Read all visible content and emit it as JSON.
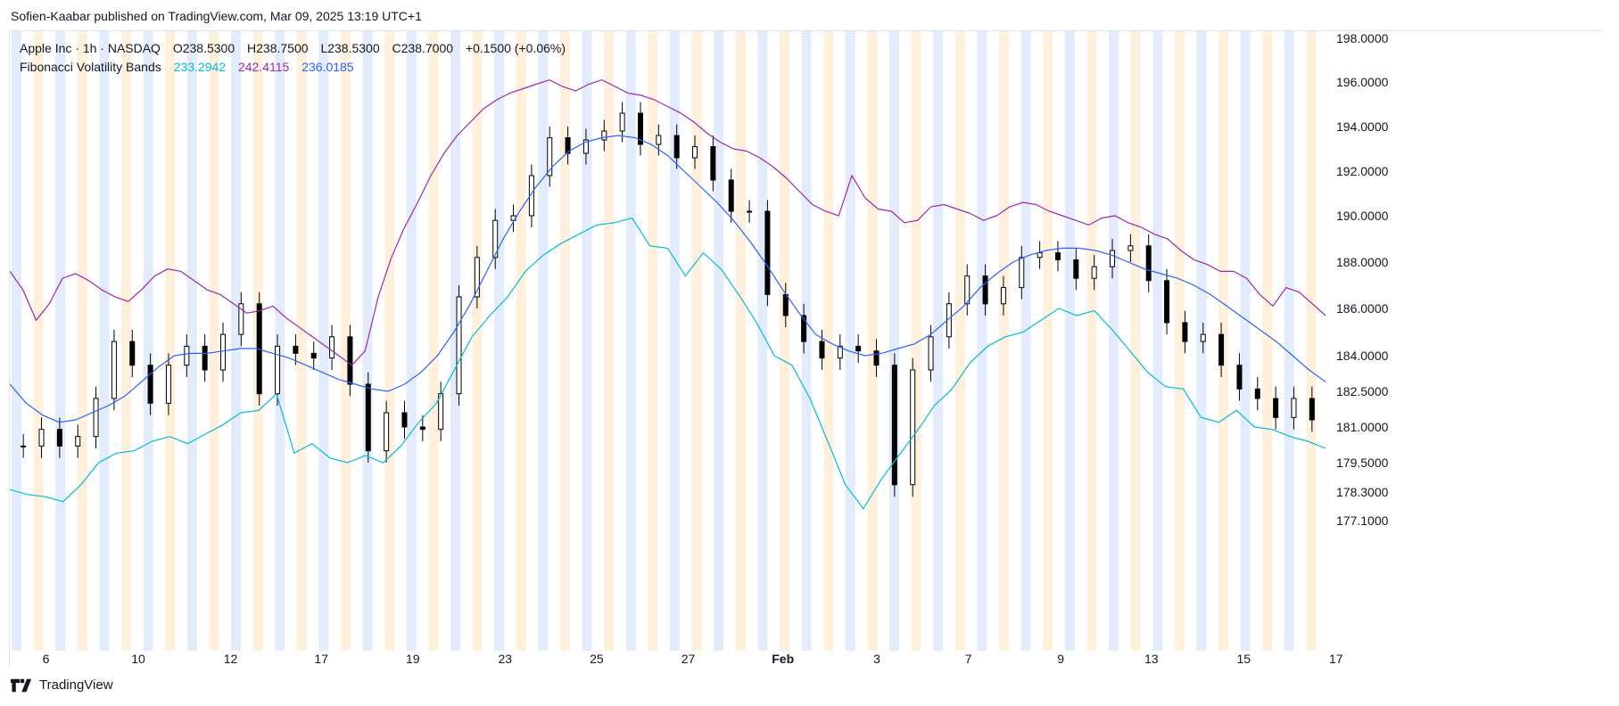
{
  "header": {
    "published": "Sofien-Kaabar published on TradingView.com, Mar 09, 2025 13:19 UTC+1"
  },
  "legend": {
    "symbol": "Apple Inc · 1h · NASDAQ",
    "open": "O238.5300",
    "high": "H238.7500",
    "low": "L238.5300",
    "close": "C238.7000",
    "change": "+0.1500 (+0.06%)",
    "indicator": "Fibonacci Volatility Bands",
    "lower_value": "233.2942",
    "upper_value": "242.4115",
    "middle_value": "236.0185"
  },
  "footer": {
    "brand": "TradingView"
  },
  "colors": {
    "upper": "#9c27b0",
    "middle": "#2962ff",
    "lower": "#00bcd4",
    "candle": "#000000",
    "session_blue": "#e3ecfd",
    "session_orange": "#fff0dc"
  },
  "chart_data": {
    "type": "candlestick",
    "y_axis_ticks": [
      "198.0000",
      "196.0000",
      "194.0000",
      "192.0000",
      "190.0000",
      "188.0000",
      "186.0000",
      "184.0000",
      "182.5000",
      "181.0000",
      "179.5000",
      "178.3000",
      "177.1000"
    ],
    "x_axis_ticks": [
      "6",
      "10",
      "12",
      "17",
      "19",
      "23",
      "25",
      "27",
      "Feb",
      "3",
      "7",
      "9",
      "13",
      "15",
      "17"
    ],
    "series": [
      {
        "name": "Fibonacci Volatility Bands upper",
        "color": "#9c27b0",
        "values": [
          187.6,
          186.8,
          185.5,
          186.2,
          187.3,
          187.5,
          187.2,
          186.8,
          186.5,
          186.3,
          186.8,
          187.4,
          187.7,
          187.6,
          187.2,
          186.8,
          186.6,
          186.2,
          185.8,
          185.9,
          186.1,
          185.6,
          185.2,
          184.8,
          184.4,
          184.0,
          183.6,
          184.2,
          186.5,
          188.2,
          189.5,
          190.6,
          191.8,
          192.8,
          193.6,
          194.2,
          194.8,
          195.2,
          195.5,
          195.7,
          195.9,
          196.1,
          195.8,
          195.6,
          195.9,
          196.1,
          195.8,
          195.5,
          195.4,
          195.2,
          194.9,
          194.6,
          194.2,
          193.7,
          193.3,
          193.0,
          192.9,
          192.6,
          192.2,
          191.7,
          191.1,
          190.5,
          190.2,
          190.0,
          191.8,
          190.8,
          190.3,
          190.2,
          189.7,
          189.8,
          190.4,
          190.5,
          190.3,
          190.1,
          189.8,
          190.0,
          190.4,
          190.6,
          190.5,
          190.2,
          190.0,
          189.8,
          189.6,
          189.9,
          190.0,
          189.7,
          189.5,
          189.2,
          189.0,
          188.5,
          188.1,
          187.9,
          187.6,
          187.6,
          187.3,
          186.6,
          186.1,
          186.9,
          186.7,
          186.2,
          185.7
        ]
      },
      {
        "name": "Fibonacci Volatility Bands middle",
        "color": "#2962ff",
        "values": [
          182.8,
          182.0,
          181.5,
          181.2,
          181.3,
          181.6,
          181.9,
          182.3,
          182.9,
          183.5,
          184.0,
          184.1,
          184.1,
          184.2,
          184.3,
          184.3,
          184.1,
          183.9,
          183.6,
          183.3,
          183.0,
          182.8,
          182.6,
          182.5,
          182.8,
          183.3,
          184.0,
          185.0,
          186.2,
          187.6,
          189.0,
          190.2,
          191.3,
          192.2,
          192.9,
          193.3,
          193.5,
          193.6,
          193.5,
          193.2,
          192.7,
          192.0,
          191.3,
          190.6,
          189.8,
          188.9,
          187.9,
          186.8,
          185.8,
          184.9,
          184.5,
          184.2,
          184.0,
          184.1,
          184.3,
          184.5,
          184.9,
          185.5,
          186.1,
          186.9,
          187.5,
          188.0,
          188.3,
          188.5,
          188.6,
          188.6,
          188.5,
          188.3,
          188.0,
          187.7,
          187.5,
          187.3,
          187.0,
          186.6,
          186.1,
          185.6,
          185.1,
          184.6,
          184.0,
          183.4,
          182.9
        ]
      },
      {
        "name": "Fibonacci Volatility Bands lower",
        "color": "#00bcd4",
        "values": [
          178.4,
          178.2,
          178.1,
          177.9,
          178.6,
          179.5,
          179.9,
          180.0,
          180.4,
          180.6,
          180.3,
          180.7,
          181.1,
          181.6,
          181.7,
          182.4,
          179.9,
          180.3,
          179.7,
          179.5,
          179.8,
          179.5,
          180.2,
          181.2,
          182.0,
          183.4,
          184.8,
          185.7,
          186.5,
          187.6,
          188.3,
          188.8,
          189.2,
          189.6,
          189.7,
          189.9,
          188.7,
          188.6,
          187.4,
          188.4,
          187.7,
          186.6,
          185.4,
          184.0,
          183.6,
          182.2,
          180.4,
          178.6,
          177.6,
          178.8,
          179.8,
          180.8,
          181.9,
          182.6,
          183.7,
          184.4,
          184.8,
          185.0,
          185.5,
          186.0,
          185.7,
          185.9,
          185.1,
          184.2,
          183.3,
          182.7,
          182.6,
          181.4,
          181.2,
          181.7,
          181.0,
          180.9,
          180.6,
          180.4,
          180.1
        ]
      }
    ],
    "candles_approx_close": [
      180.2,
      180.9,
      180.2,
      180.6,
      182.2,
      184.6,
      183.6,
      182.0,
      183.6,
      184.4,
      183.4,
      184.9,
      186.2,
      182.4,
      184.4,
      184.1,
      183.9,
      184.8,
      182.8,
      180.0,
      181.6,
      181.0,
      180.9,
      182.4,
      186.5,
      188.2,
      189.8,
      190.0,
      191.8,
      193.5,
      192.8,
      193.4,
      193.8,
      194.6,
      193.2,
      193.6,
      192.6,
      193.1,
      191.6,
      190.2,
      190.2,
      186.6,
      185.7,
      184.6,
      183.9,
      184.4,
      184.2,
      183.6,
      178.6,
      183.4,
      184.8,
      186.2,
      187.4,
      186.2,
      186.9,
      188.2,
      188.4,
      188.1,
      187.3,
      187.8,
      188.5,
      188.7,
      187.2,
      185.4,
      184.6,
      184.9,
      183.6,
      182.6,
      182.2,
      181.4,
      182.2,
      181.3
    ]
  }
}
